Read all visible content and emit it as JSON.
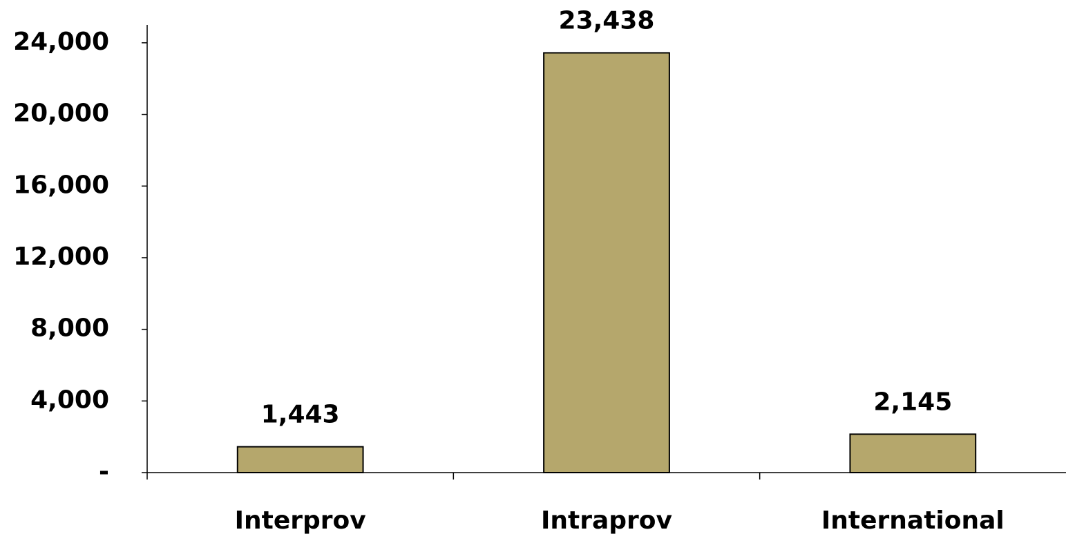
{
  "chart_data": {
    "type": "bar",
    "categories": [
      "Interprov",
      "Intraprov",
      "International"
    ],
    "values": [
      1443,
      23438,
      2145
    ],
    "value_labels": [
      "1,443",
      "23,438",
      "2,145"
    ],
    "color": "#b5a76c",
    "ylim": [
      0,
      25000
    ],
    "yticks": [
      {
        "value": 0,
        "label": "-"
      },
      {
        "value": 4000,
        "label": "4,000"
      },
      {
        "value": 8000,
        "label": "8,000"
      },
      {
        "value": 12000,
        "label": "12,000"
      },
      {
        "value": 16000,
        "label": "16,000"
      },
      {
        "value": 20000,
        "label": "20,000"
      },
      {
        "value": 24000,
        "label": "24,000"
      }
    ],
    "grid": false
  }
}
